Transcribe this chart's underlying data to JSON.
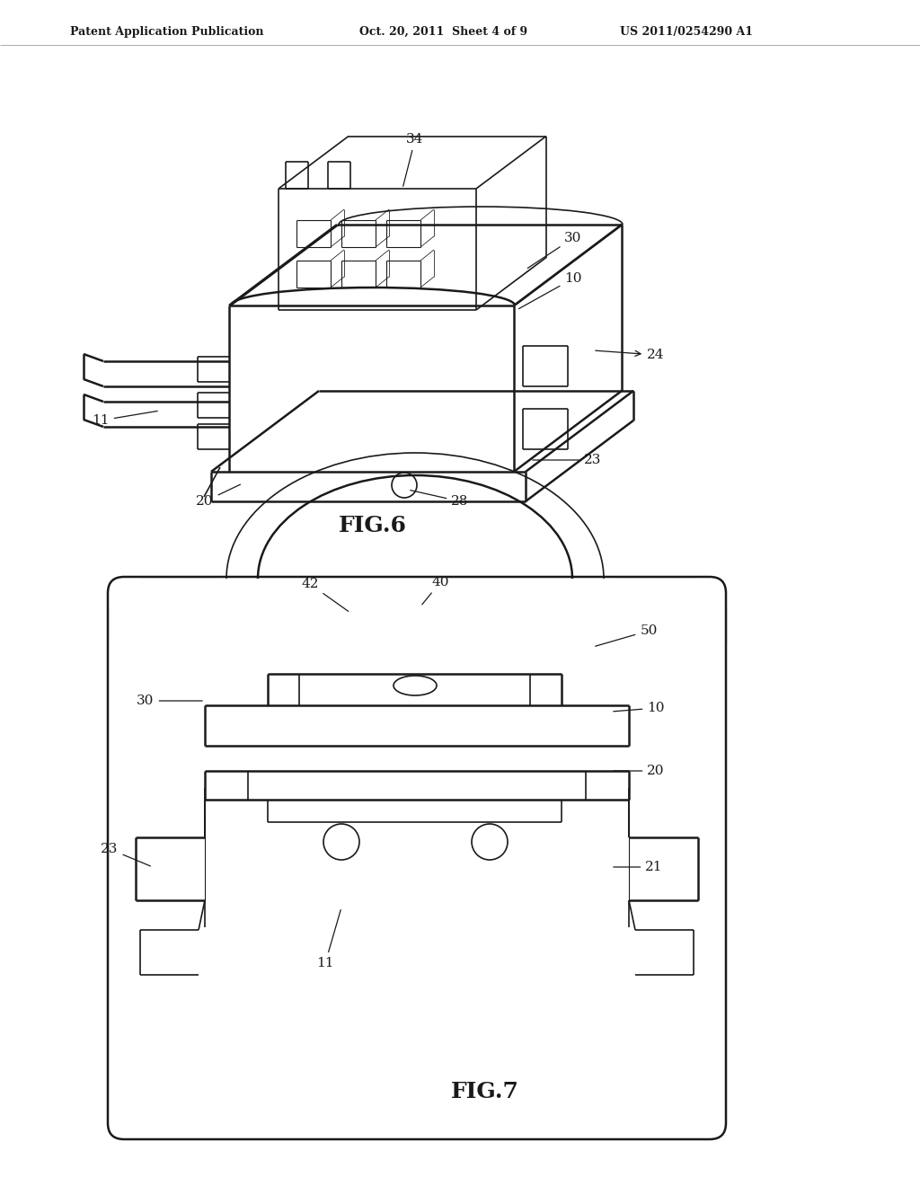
{
  "bg_color": "#ffffff",
  "line_color": "#1a1a1a",
  "header_text": "Patent Application Publication",
  "header_date": "Oct. 20, 2011  Sheet 4 of 9",
  "header_patent": "US 2011/0254290 A1",
  "fig6_label": "FIG.6",
  "fig7_label": "FIG.7",
  "fig_width": 1024,
  "fig_height": 1320,
  "dpi": 100
}
